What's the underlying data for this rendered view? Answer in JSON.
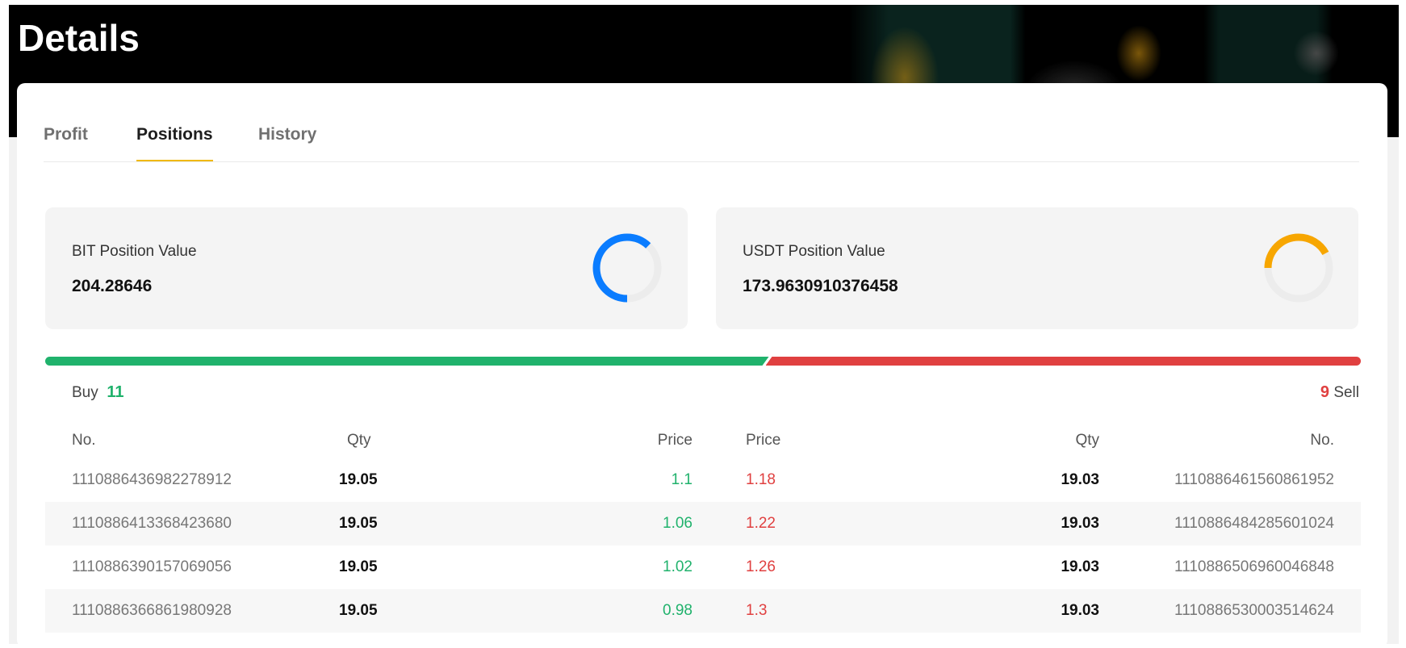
{
  "page": {
    "title": "Details"
  },
  "tabs": [
    {
      "label": "Profit"
    },
    {
      "label": "Positions",
      "active": true
    },
    {
      "label": "History"
    }
  ],
  "stats": [
    {
      "label": "BIT Position Value",
      "value": "204.28646",
      "ring_fraction": 0.62,
      "color": "#0a7cff"
    },
    {
      "label": "USDT Position Value",
      "value": "173.9630910376458",
      "ring_fraction": 0.42,
      "color": "#f7a600"
    }
  ],
  "ratio": {
    "buy_label": "Buy",
    "buy_count": "11",
    "sell_label": "Sell",
    "sell_count": "9",
    "buy_fraction": 0.55,
    "buy_color": "#20b26c",
    "sell_color": "#e04040"
  },
  "table": {
    "headers": [
      "No.",
      "Qty",
      "Price",
      "Price",
      "Qty",
      "No."
    ],
    "rows": [
      [
        "1110886436982278912",
        "19.05",
        "1.1",
        "1.18",
        "19.03",
        "1110886461560861952"
      ],
      [
        "1110886413368423680",
        "19.05",
        "1.06",
        "1.22",
        "19.03",
        "1110886484285601024"
      ],
      [
        "1110886390157069056",
        "19.05",
        "1.02",
        "1.26",
        "19.03",
        "1110886506960046848"
      ],
      [
        "1110886366861980928",
        "19.05",
        "0.98",
        "1.3",
        "19.03",
        "1110886530003514624"
      ]
    ]
  }
}
